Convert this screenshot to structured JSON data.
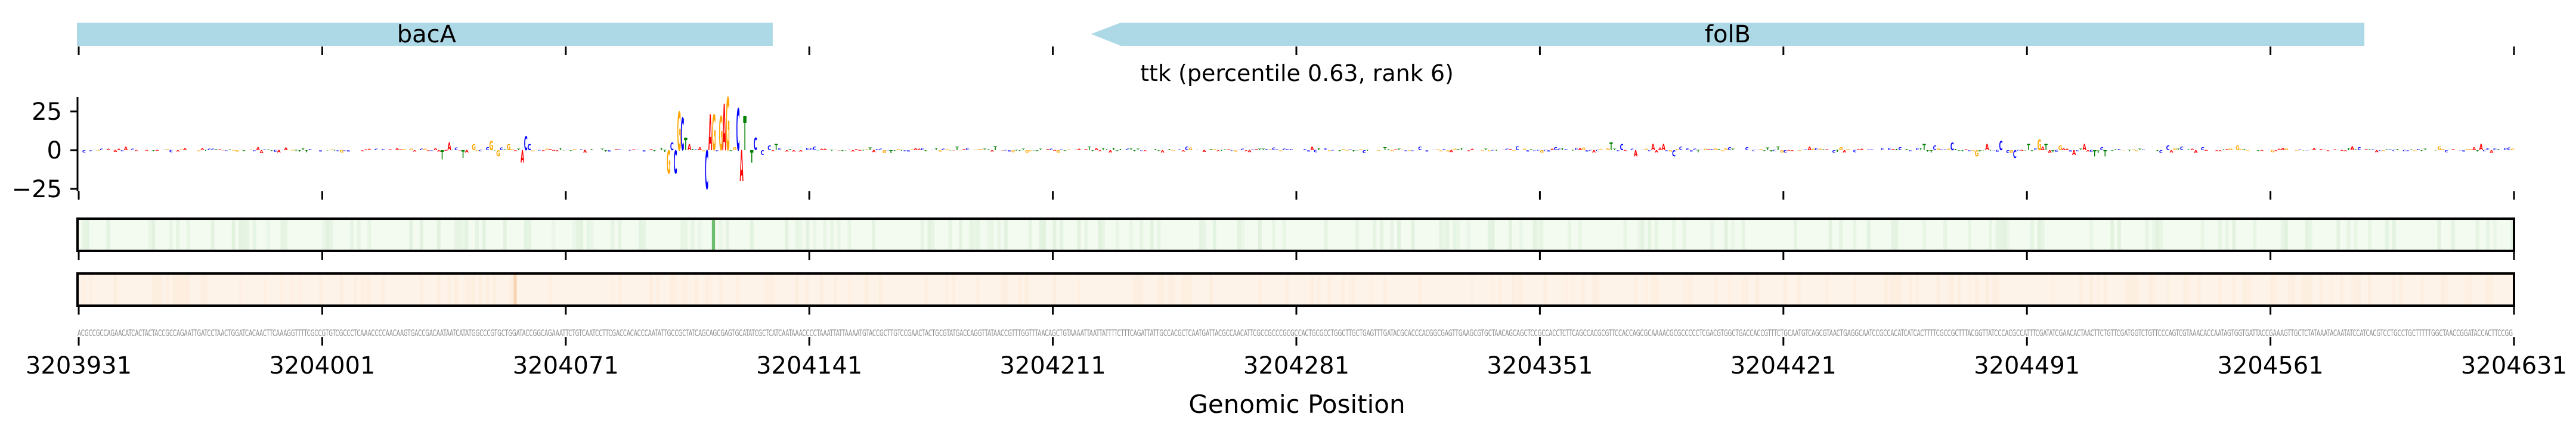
{
  "title": "ttk (percentile 0.63, rank 6)",
  "chart_data": {
    "type": "sequence-logo-track",
    "title": "ttk (percentile 0.63, rank 6)",
    "xlabel": "Genomic Position",
    "x_range": [
      3203931,
      3204631
    ],
    "x_ticks": [
      "3203931",
      "3204001",
      "3204071",
      "3204141",
      "3204211",
      "3204281",
      "3204351",
      "3204421",
      "3204491",
      "3204561",
      "3204631"
    ],
    "y_ticks": [
      "25",
      "0",
      "−25"
    ],
    "y_tick_values": [
      25,
      0,
      -25
    ],
    "ylim": [
      -27,
      34
    ],
    "genes": [
      {
        "name": "bacA",
        "start_bp": 0,
        "end_bp": 200,
        "strand": "+"
      },
      {
        "name": "folB",
        "start_bp": 291,
        "end_bp": 657,
        "strand": "-"
      }
    ],
    "letter_colors": {
      "A": "#ff0000",
      "C": "#0000ff",
      "G": "#ffa500",
      "T": "#008000"
    },
    "attribution_peaks": [
      [
        104,
        -6
      ],
      [
        106,
        5
      ],
      [
        110,
        -5
      ],
      [
        113,
        4
      ],
      [
        118,
        6
      ],
      [
        120,
        -4
      ],
      [
        123,
        4
      ],
      [
        127,
        -8
      ],
      [
        128,
        9
      ],
      [
        129,
        4
      ],
      [
        169,
        -15
      ],
      [
        170,
        5
      ],
      [
        171,
        -15
      ],
      [
        172,
        25
      ],
      [
        173,
        21
      ],
      [
        174,
        8
      ],
      [
        175,
        4
      ],
      [
        178,
        2
      ],
      [
        180,
        -25
      ],
      [
        181,
        23
      ],
      [
        182,
        23
      ],
      [
        184,
        22
      ],
      [
        185,
        30
      ],
      [
        186,
        34
      ],
      [
        188,
        2
      ],
      [
        189,
        27
      ],
      [
        190,
        -20
      ],
      [
        191,
        22
      ],
      [
        193,
        -8
      ],
      [
        194,
        8
      ],
      [
        196,
        -3
      ],
      [
        198,
        3
      ],
      [
        200,
        4
      ],
      [
        440,
        5
      ],
      [
        443,
        4
      ],
      [
        447,
        -4
      ],
      [
        452,
        4
      ],
      [
        455,
        4
      ],
      [
        458,
        -4
      ],
      [
        530,
        4
      ],
      [
        533,
        3
      ],
      [
        538,
        5
      ],
      [
        545,
        -4
      ],
      [
        548,
        4
      ],
      [
        552,
        6
      ],
      [
        556,
        -5
      ],
      [
        560,
        4
      ],
      [
        563,
        7
      ],
      [
        565,
        4
      ],
      [
        569,
        3
      ],
      [
        573,
        -3
      ],
      [
        576,
        4
      ],
      [
        579,
        -4
      ],
      [
        582,
        -4
      ],
      [
        600,
        3
      ],
      [
        610,
        2
      ],
      [
        620,
        3
      ],
      [
        690,
        4
      ]
    ],
    "heatmap_tracks": [
      {
        "name": "green-track",
        "color": "#2ca02c",
        "background": "#f3faf0",
        "peak_bp": 182
      },
      {
        "name": "orange-track",
        "color": "#f5c08a",
        "background": "#fef3e8",
        "peak_bp": 125
      }
    ],
    "sequence": "ACGCCGCCAGAACATCACTACTACCGCCAGAATTGATCCTAACTGGATCACAACTTCAAAGGTTTTCGCCGTGTCGCCCTCAAACCCCAACAAGTGACCGACAATAATCATATGGCCCGTGCTGGATACCGGCAGAAATTCTGTCAATCCTTCGACCACACCCAATATTGCCGCTATCAGCAGCGAGTGCATATCGCTCATCAATAAACCCCTAAATTATTAAAATGTACCGCTTGTCCGAACTACTGCGTATGACCAGGTTATAACCGTTTGGTTTAACAGCTGTAAAATTAATTATTTTCTTTCAGATTATTGCCACGCTCAATGATTACGCCAACATTCGCCGCCCGCGCCACTGCGCCTGGCTTGCTGAGTTTGATACGCACCCACGGCGAGTTGAAGCGTGCTAACAGCAGCTCCGCCACCTCTTCAGCCACGCGTTCCACCAGCGCAAAACGCGCCCCCTCGACGTGGCTGACCACCGTTTCTGCAATGTCAGCGTAACTGAGGCAATCCGCCACATCATCACTTTTCGCCGCTTTACGGTTATCCCACGCCATTTCGATATCGAACACTAACTTCTGTTCGATGGTCTGTTCCCAGTCGTAAACACCAATAGTGGTGATTACCGAAAGTTGCTCTATAAATACAATATCCATCACGTCCTGCCTGCTTTTTGGCTAACCGGATACCACTTCCGG"
  }
}
